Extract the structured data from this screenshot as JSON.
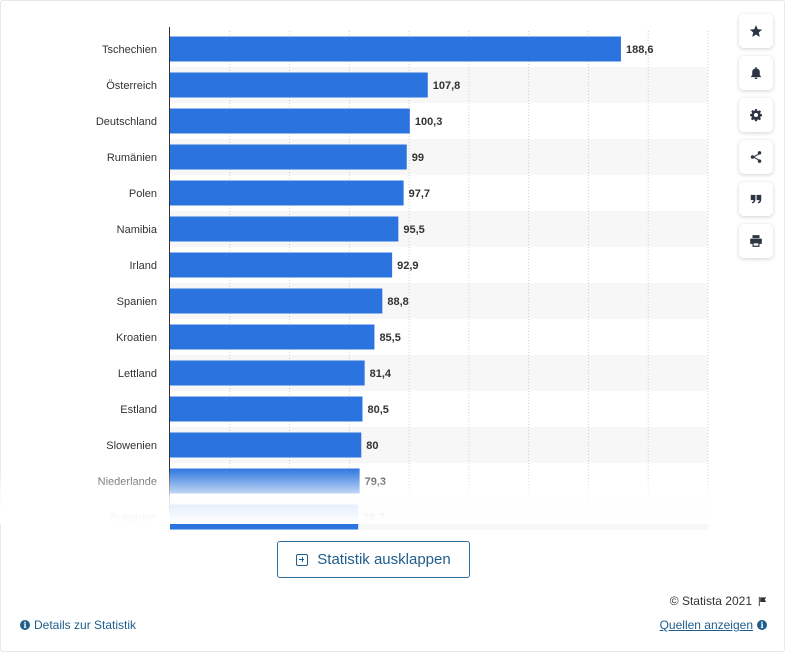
{
  "chart_data": {
    "type": "bar",
    "orientation": "horizontal",
    "categories": [
      "Tschechien",
      "Österreich",
      "Deutschland",
      "Rumänien",
      "Polen",
      "Namibia",
      "Irland",
      "Spanien",
      "Kroatien",
      "Lettland",
      "Estland",
      "Slowenien",
      "Niederlande",
      "Bulgarien"
    ],
    "values": [
      188.6,
      107.8,
      100.3,
      99,
      97.7,
      95.5,
      92.9,
      88.8,
      85.5,
      81.4,
      80.5,
      80,
      79.3,
      78.7
    ],
    "value_labels": [
      "188,6",
      "107,8",
      "100,3",
      "99",
      "97,7",
      "95,5",
      "92,9",
      "88,8",
      "85,5",
      "81,4",
      "80,5",
      "80",
      "79,3",
      "78,7"
    ],
    "title": "",
    "xlabel": "",
    "ylabel": "",
    "xlim": [
      0,
      225
    ],
    "grid": true,
    "bar_color": "#2b74e0"
  },
  "toolbar": {
    "items": [
      {
        "name": "favorite",
        "icon": "star-icon"
      },
      {
        "name": "notification",
        "icon": "bell-icon"
      },
      {
        "name": "settings",
        "icon": "gear-icon"
      },
      {
        "name": "share",
        "icon": "share-icon"
      },
      {
        "name": "cite",
        "icon": "quote-icon"
      },
      {
        "name": "print",
        "icon": "printer-icon"
      }
    ]
  },
  "expand_button": {
    "label": "Statistik ausklappen",
    "icon": "plus-square-icon"
  },
  "footer": {
    "copyright": "© Statista 2021",
    "details_label": "Details zur Statistik",
    "sources_label": "Quellen anzeigen"
  },
  "colors": {
    "accent": "#1f5d8c",
    "bar": "#2b74e0"
  }
}
